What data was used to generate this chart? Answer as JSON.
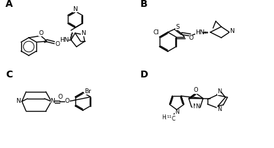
{
  "background_color": "#ffffff",
  "label_A": "A",
  "label_B": "B",
  "label_C": "C",
  "label_D": "D",
  "label_fontsize": 10,
  "label_fontweight": "bold",
  "figsize": [
    4.0,
    2.16
  ],
  "dpi": 100
}
